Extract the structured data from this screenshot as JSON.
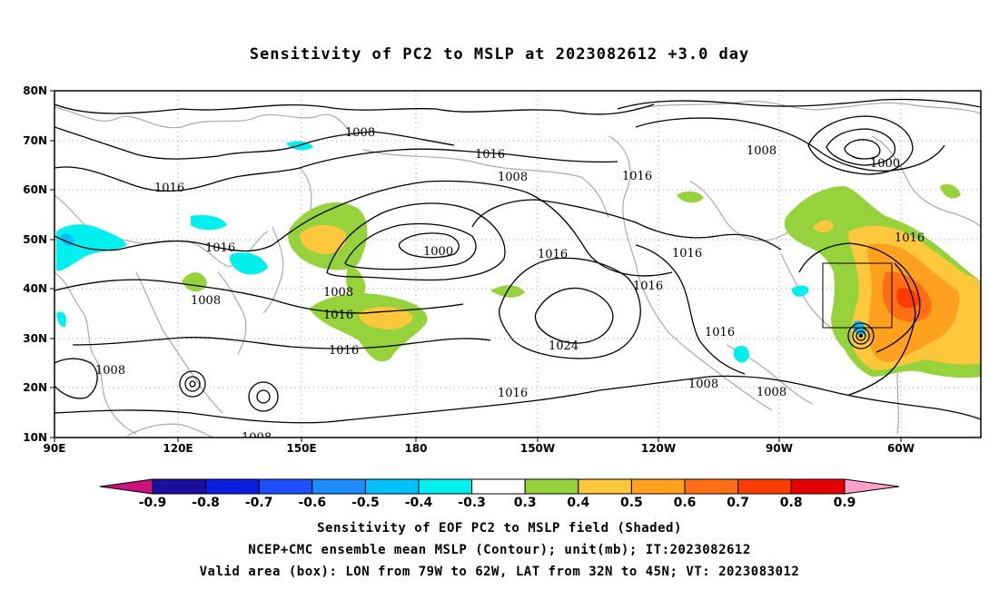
{
  "title": "Sensitivity of PC2 to MSLP at 2023082612 +3.0 day",
  "lat_labels": [
    "80N",
    "70N",
    "60N",
    "50N",
    "40N",
    "30N",
    "20N",
    "10N"
  ],
  "lon_labels": [
    "90E",
    "120E",
    "150E",
    "180",
    "150W",
    "120W",
    "90W",
    "60W"
  ],
  "contour_labels": [
    "1008",
    "1016",
    "1008",
    "1000",
    "1016",
    "1008",
    "1016",
    "1000",
    "1016",
    "1016",
    "1008",
    "1016",
    "1008",
    "1016",
    "1016",
    "1016",
    "1016",
    "1024",
    "1016",
    "1016",
    "1008",
    "1008",
    "1008",
    "1008"
  ],
  "colorbar": {
    "ticks": [
      "-0.9",
      "-0.8",
      "-0.7",
      "-0.6",
      "-0.5",
      "-0.4",
      "-0.3",
      "0.3",
      "0.4",
      "0.5",
      "0.6",
      "0.7",
      "0.8",
      "0.9"
    ],
    "colors": [
      "#1a0fa0",
      "#0a1ee0",
      "#1e50ff",
      "#1e8cff",
      "#00c0ff",
      "#00f0f0",
      "#ffffff",
      "#96d23c",
      "#ffc83c",
      "#ffa01e",
      "#ff6e14",
      "#ff3c00",
      "#e60000"
    ],
    "low_color": "#c8147a",
    "high_color": "#ffa0c8"
  },
  "captions": [
    "Sensitivity of EOF PC2 to MSLP field (Shaded)",
    "NCEP+CMC ensemble mean MSLP (Contour); unit(mb); IT:2023082612",
    "Valid area (box): LON from 79W to 62W, LAT from 32N to 45N; VT: 2023083012"
  ]
}
